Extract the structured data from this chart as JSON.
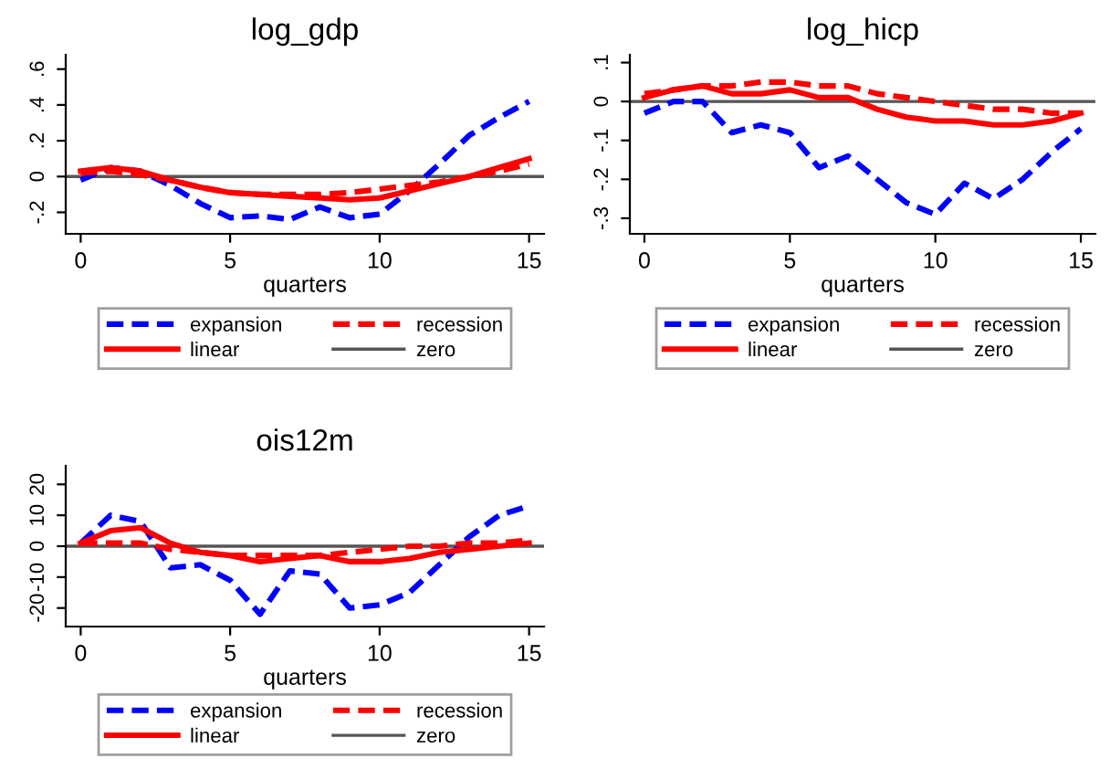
{
  "chart_data": [
    {
      "type": "line",
      "title": "log_gdp",
      "xlabel": "quarters",
      "x": [
        0,
        1,
        2,
        3,
        4,
        5,
        6,
        7,
        8,
        9,
        10,
        11,
        12,
        13,
        14,
        15
      ],
      "xlim": [
        -0.5,
        15.5
      ],
      "xticks": [
        0,
        5,
        10,
        15
      ],
      "ylim": [
        -0.32,
        0.68
      ],
      "yticks": [
        {
          "value": -0.2,
          "label": "-.2"
        },
        {
          "value": 0,
          "label": "0"
        },
        {
          "value": 0.2,
          "label": ".2"
        },
        {
          "value": 0.4,
          "label": ".4"
        },
        {
          "value": 0.6,
          "label": ".6"
        }
      ],
      "grid": false,
      "legend": "bottom",
      "marker": "none",
      "series": [
        {
          "name": "expansion",
          "color": "#0000ff",
          "line_style": "dashed",
          "values": [
            -0.02,
            0.05,
            0.03,
            -0.05,
            -0.15,
            -0.23,
            -0.22,
            -0.24,
            -0.17,
            -0.23,
            -0.21,
            -0.08,
            0.07,
            0.23,
            0.33,
            0.42
          ]
        },
        {
          "name": "recession",
          "color": "#ff0000",
          "line_style": "dashed",
          "values": [
            0.02,
            0.03,
            0.01,
            -0.02,
            -0.06,
            -0.09,
            -0.1,
            -0.1,
            -0.1,
            -0.09,
            -0.07,
            -0.05,
            -0.03,
            0.0,
            0.03,
            0.07
          ]
        },
        {
          "name": "linear",
          "color": "#ff0000",
          "line_style": "solid",
          "values": [
            0.03,
            0.05,
            0.03,
            -0.02,
            -0.06,
            -0.09,
            -0.1,
            -0.11,
            -0.12,
            -0.13,
            -0.12,
            -0.08,
            -0.04,
            0.0,
            0.05,
            0.1
          ]
        }
      ],
      "ref_lines": [
        {
          "axis": "y",
          "value": 0,
          "label": "zero",
          "color": "#555555"
        }
      ]
    },
    {
      "type": "line",
      "title": "log_hicp",
      "xlabel": "quarters",
      "x": [
        0,
        1,
        2,
        3,
        4,
        5,
        6,
        7,
        8,
        9,
        10,
        11,
        12,
        13,
        14,
        15
      ],
      "xlim": [
        -0.5,
        15.5
      ],
      "xticks": [
        0,
        5,
        10,
        15
      ],
      "ylim": [
        -0.34,
        0.12
      ],
      "yticks": [
        {
          "value": -0.3,
          "label": "-.3"
        },
        {
          "value": -0.2,
          "label": "-.2"
        },
        {
          "value": -0.1,
          "label": "-.1"
        },
        {
          "value": 0,
          "label": "0"
        },
        {
          "value": 0.1,
          "label": ".1"
        }
      ],
      "grid": false,
      "legend": "bottom",
      "marker": "none",
      "series": [
        {
          "name": "expansion",
          "color": "#0000ff",
          "line_style": "dashed",
          "values": [
            -0.03,
            0.0,
            0.0,
            -0.08,
            -0.06,
            -0.08,
            -0.17,
            -0.14,
            -0.2,
            -0.26,
            -0.29,
            -0.21,
            -0.25,
            -0.2,
            -0.13,
            -0.07
          ]
        },
        {
          "name": "recession",
          "color": "#ff0000",
          "line_style": "dashed",
          "values": [
            0.02,
            0.03,
            0.04,
            0.04,
            0.05,
            0.05,
            0.04,
            0.04,
            0.02,
            0.01,
            0.0,
            -0.01,
            -0.02,
            -0.02,
            -0.03,
            -0.03
          ]
        },
        {
          "name": "linear",
          "color": "#ff0000",
          "line_style": "solid",
          "values": [
            0.01,
            0.03,
            0.04,
            0.02,
            0.02,
            0.03,
            0.01,
            0.01,
            -0.02,
            -0.04,
            -0.05,
            -0.05,
            -0.06,
            -0.06,
            -0.05,
            -0.03
          ]
        }
      ],
      "ref_lines": [
        {
          "axis": "y",
          "value": 0,
          "label": "zero",
          "color": "#555555"
        }
      ]
    },
    {
      "type": "line",
      "title": "ois12m",
      "xlabel": "quarters",
      "x": [
        0,
        1,
        2,
        3,
        4,
        5,
        6,
        7,
        8,
        9,
        10,
        11,
        12,
        13,
        14,
        15
      ],
      "xlim": [
        -0.5,
        15.5
      ],
      "xticks": [
        0,
        5,
        10,
        15
      ],
      "ylim": [
        -26,
        26
      ],
      "yticks": [
        -20,
        -10,
        0,
        10,
        20
      ],
      "grid": false,
      "legend": "bottom",
      "marker": "none",
      "series": [
        {
          "name": "expansion",
          "color": "#0000ff",
          "line_style": "dashed",
          "values": [
            1,
            10,
            8,
            -7,
            -6,
            -11,
            -22,
            -8,
            -9,
            -20,
            -19,
            -15,
            -6,
            3,
            10,
            13
          ]
        },
        {
          "name": "recession",
          "color": "#ff0000",
          "line_style": "dashed",
          "values": [
            1,
            1,
            1,
            -1,
            -2,
            -3,
            -3,
            -3,
            -3,
            -2,
            -1,
            0,
            0,
            1,
            1,
            2
          ]
        },
        {
          "name": "linear",
          "color": "#ff0000",
          "line_style": "solid",
          "values": [
            1,
            5,
            6,
            1,
            -2,
            -3,
            -5,
            -4,
            -3,
            -5,
            -5,
            -4,
            -2,
            -1,
            0,
            1
          ]
        }
      ],
      "ref_lines": [
        {
          "axis": "y",
          "value": 0,
          "label": "zero",
          "color": "#555555"
        }
      ]
    }
  ]
}
